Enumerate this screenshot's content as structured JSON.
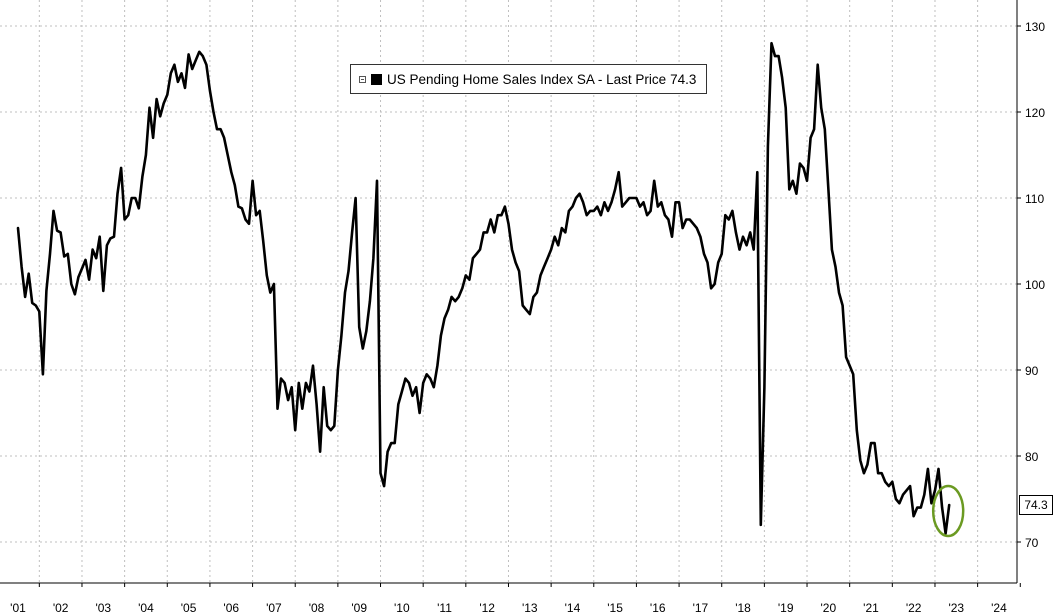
{
  "legend": {
    "series_name": "US Pending Home Sales Index SA - Last Price",
    "last_price": "74.3"
  },
  "colors": {
    "line": "#000000",
    "grid": "#bfbfbf",
    "highlight_circle": "#6b9a22",
    "background": "#ffffff"
  },
  "chart_data": {
    "type": "line",
    "series": [
      {
        "name": "US Pending Home Sales Index SA",
        "x_start": "2001-01",
        "frequency": "monthly",
        "values": [
          106.5,
          102,
          98.5,
          101.2,
          97.8,
          97.5,
          96.8,
          89.5,
          99.2,
          103.5,
          108.5,
          106.2,
          106,
          103.2,
          103.5,
          100,
          98.8,
          100.8,
          101.8,
          102.8,
          100.5,
          104,
          103,
          105.5,
          99.2,
          104.5,
          105.3,
          105.5,
          110.5,
          113.5,
          107.5,
          108,
          110,
          110,
          108.8,
          112.5,
          115,
          120.5,
          117,
          121.5,
          119.5,
          121,
          122,
          124.5,
          125.5,
          123.5,
          124.5,
          122.8,
          126.7,
          125,
          126,
          127,
          126.5,
          125.5,
          122.5,
          120,
          118,
          118,
          117,
          115,
          113,
          111.5,
          109,
          108.8,
          107.5,
          107,
          112,
          108,
          108.5,
          105,
          101,
          99,
          100,
          85.5,
          89,
          88.5,
          86.5,
          88,
          83,
          88.5,
          85.5,
          88.5,
          87.5,
          90.5,
          86,
          80.5,
          88,
          83.5,
          83,
          83.5,
          90,
          94,
          99,
          101.5,
          106,
          110,
          95,
          92.5,
          94.5,
          98,
          103,
          112,
          78,
          76.5,
          80.5,
          81.5,
          81.5,
          86,
          87.5,
          89,
          88.5,
          87,
          88,
          85,
          88.5,
          89.5,
          89,
          88,
          90.5,
          94,
          96,
          97,
          98.5,
          98,
          98.5,
          99.5,
          101,
          100.5,
          103,
          103.5,
          104,
          106,
          106,
          107.5,
          106,
          108,
          108,
          109,
          107,
          104,
          102.5,
          101.5,
          97.5,
          97,
          96.5,
          98.5,
          99,
          101,
          102,
          103,
          104,
          105.5,
          104.5,
          106.5,
          106,
          108.5,
          109,
          110,
          110.5,
          109.5,
          108,
          108.5,
          108.5,
          109,
          108,
          109.5,
          108.5,
          109.5,
          111,
          113,
          109,
          109.5,
          110,
          110,
          110,
          109,
          109.5,
          108,
          108.5,
          112,
          109,
          109.5,
          108,
          107.5,
          105.5,
          109.5,
          109.5,
          106.5,
          107.5,
          107.5,
          107,
          106.5,
          105.5,
          103.5,
          102.5,
          99.5,
          100,
          102.5,
          103.5,
          108,
          107.5,
          108.5,
          106,
          104,
          105.5,
          104.5,
          106,
          104,
          113,
          72,
          88,
          116,
          128,
          126.5,
          126.5,
          124,
          120.5,
          111,
          112,
          110.5,
          114,
          113.5,
          112,
          117,
          118,
          125.5,
          120.5,
          118,
          111,
          104,
          102,
          99,
          97.5,
          91.5,
          90.5,
          89.5,
          83,
          79.5,
          78,
          79,
          81.5,
          81.5,
          78,
          78,
          77,
          76.5,
          77,
          75,
          74.5,
          75.5,
          76,
          76.5,
          73,
          74,
          74,
          75.5,
          78.5,
          74.5,
          76,
          78.5,
          74,
          71,
          74.3
        ]
      }
    ],
    "x_tick_labels": [
      "'01",
      "'02",
      "'03",
      "'04",
      "'05",
      "'06",
      "'07",
      "'08",
      "'09",
      "'10",
      "'11",
      "'12",
      "'13",
      "'14",
      "'15",
      "'16",
      "'17",
      "'18",
      "'19",
      "'20",
      "'21",
      "'22",
      "'23",
      "'24"
    ],
    "y_ticks": [
      70,
      80,
      90,
      100,
      110,
      120,
      130
    ],
    "ylim": [
      65,
      132
    ],
    "y_axis_position": "right",
    "grid": true,
    "legend_position": "top-center",
    "annotations": [
      {
        "type": "circle",
        "target": "last-value"
      },
      {
        "type": "value-tag",
        "text": "74.3"
      }
    ],
    "title": "",
    "xlabel": "",
    "ylabel": ""
  }
}
